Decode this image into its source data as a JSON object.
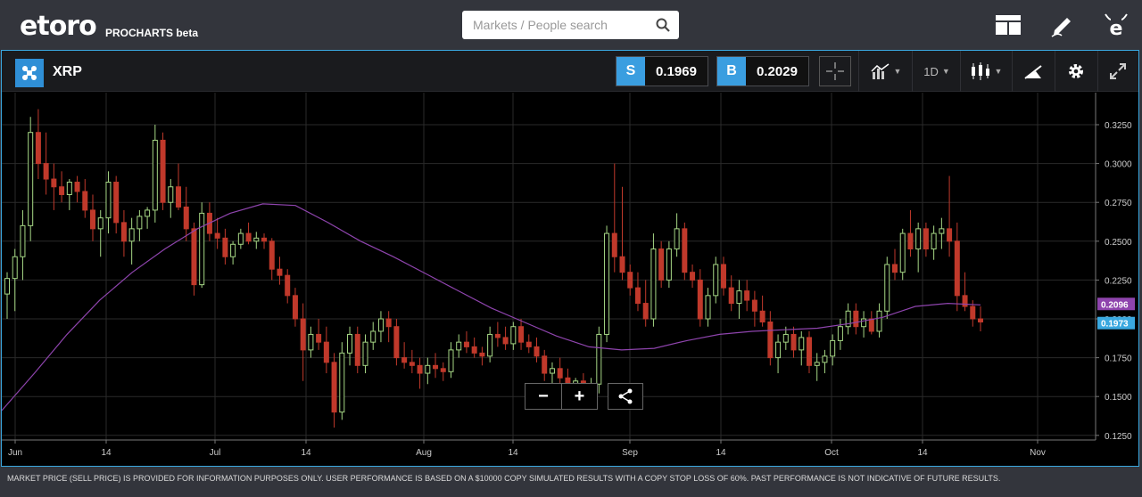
{
  "brand": {
    "logo": "etoro",
    "product": "PROCHARTS beta"
  },
  "search": {
    "placeholder": "Markets / People search"
  },
  "instrument": {
    "symbol": "XRP"
  },
  "prices": {
    "sell_tag": "S",
    "sell": "0.1969",
    "buy_tag": "B",
    "buy": "0.2029"
  },
  "toolbar": {
    "timeframe": "1D"
  },
  "colors": {
    "accent": "#3aa8e0",
    "bear": "#c0392b",
    "bull": "#a6d785",
    "ma": "#8e44ad",
    "current_label": "#3aa8e0",
    "ma_label": "#8e44ad"
  },
  "chart_data": {
    "type": "candlestick",
    "y_ticks": [
      "0.3250",
      "0.3000",
      "0.2750",
      "0.2500",
      "0.2250",
      "0.2000",
      "0.1750",
      "0.1500",
      "0.1250"
    ],
    "ylim": [
      0.12,
      0.34
    ],
    "x_ticks": [
      "Jun",
      "14",
      "Jul",
      "14",
      "Aug",
      "14",
      "Sep",
      "14",
      "Oct",
      "14",
      "Nov"
    ],
    "ma_label": "0.2096",
    "last_label": "0.1973",
    "grid": true,
    "ohlc": [
      [
        0.216,
        0.23,
        0.2,
        0.226
      ],
      [
        0.226,
        0.245,
        0.205,
        0.24
      ],
      [
        0.24,
        0.27,
        0.225,
        0.26
      ],
      [
        0.26,
        0.33,
        0.25,
        0.32
      ],
      [
        0.32,
        0.335,
        0.29,
        0.3
      ],
      [
        0.3,
        0.32,
        0.28,
        0.29
      ],
      [
        0.29,
        0.3,
        0.27,
        0.285
      ],
      [
        0.285,
        0.295,
        0.275,
        0.28
      ],
      [
        0.28,
        0.29,
        0.27,
        0.288
      ],
      [
        0.288,
        0.292,
        0.275,
        0.282
      ],
      [
        0.282,
        0.29,
        0.265,
        0.27
      ],
      [
        0.27,
        0.28,
        0.25,
        0.258
      ],
      [
        0.258,
        0.27,
        0.24,
        0.265
      ],
      [
        0.265,
        0.295,
        0.255,
        0.288
      ],
      [
        0.288,
        0.292,
        0.255,
        0.262
      ],
      [
        0.262,
        0.27,
        0.24,
        0.25
      ],
      [
        0.25,
        0.265,
        0.235,
        0.258
      ],
      [
        0.258,
        0.27,
        0.25,
        0.266
      ],
      [
        0.266,
        0.272,
        0.258,
        0.27
      ],
      [
        0.27,
        0.325,
        0.262,
        0.315
      ],
      [
        0.315,
        0.32,
        0.27,
        0.275
      ],
      [
        0.275,
        0.29,
        0.265,
        0.285
      ],
      [
        0.285,
        0.3,
        0.27,
        0.272
      ],
      [
        0.272,
        0.285,
        0.25,
        0.258
      ],
      [
        0.258,
        0.262,
        0.215,
        0.222
      ],
      [
        0.222,
        0.275,
        0.22,
        0.268
      ],
      [
        0.268,
        0.275,
        0.25,
        0.255
      ],
      [
        0.255,
        0.265,
        0.245,
        0.252
      ],
      [
        0.252,
        0.258,
        0.235,
        0.24
      ],
      [
        0.24,
        0.25,
        0.235,
        0.248
      ],
      [
        0.248,
        0.258,
        0.245,
        0.255
      ],
      [
        0.255,
        0.262,
        0.248,
        0.25
      ],
      [
        0.25,
        0.256,
        0.245,
        0.252
      ],
      [
        0.252,
        0.255,
        0.245,
        0.25
      ],
      [
        0.25,
        0.252,
        0.225,
        0.232
      ],
      [
        0.232,
        0.24,
        0.222,
        0.228
      ],
      [
        0.228,
        0.232,
        0.21,
        0.215
      ],
      [
        0.215,
        0.22,
        0.195,
        0.2
      ],
      [
        0.2,
        0.21,
        0.16,
        0.18
      ],
      [
        0.18,
        0.195,
        0.175,
        0.19
      ],
      [
        0.19,
        0.2,
        0.18,
        0.185
      ],
      [
        0.185,
        0.195,
        0.165,
        0.172
      ],
      [
        0.172,
        0.178,
        0.13,
        0.14
      ],
      [
        0.14,
        0.185,
        0.135,
        0.178
      ],
      [
        0.178,
        0.195,
        0.17,
        0.19
      ],
      [
        0.19,
        0.195,
        0.165,
        0.17
      ],
      [
        0.17,
        0.19,
        0.165,
        0.185
      ],
      [
        0.185,
        0.198,
        0.18,
        0.192
      ],
      [
        0.192,
        0.205,
        0.185,
        0.2
      ],
      [
        0.2,
        0.205,
        0.185,
        0.195
      ],
      [
        0.195,
        0.2,
        0.17,
        0.175
      ],
      [
        0.175,
        0.185,
        0.168,
        0.172
      ],
      [
        0.172,
        0.18,
        0.165,
        0.17
      ],
      [
        0.17,
        0.175,
        0.155,
        0.165
      ],
      [
        0.165,
        0.175,
        0.158,
        0.17
      ],
      [
        0.17,
        0.178,
        0.162,
        0.168
      ],
      [
        0.168,
        0.172,
        0.16,
        0.166
      ],
      [
        0.166,
        0.185,
        0.162,
        0.18
      ],
      [
        0.18,
        0.19,
        0.175,
        0.185
      ],
      [
        0.185,
        0.192,
        0.178,
        0.182
      ],
      [
        0.182,
        0.188,
        0.175,
        0.178
      ],
      [
        0.178,
        0.182,
        0.17,
        0.176
      ],
      [
        0.176,
        0.195,
        0.172,
        0.19
      ],
      [
        0.19,
        0.198,
        0.182,
        0.188
      ],
      [
        0.188,
        0.195,
        0.18,
        0.184
      ],
      [
        0.184,
        0.198,
        0.18,
        0.195
      ],
      [
        0.195,
        0.2,
        0.18,
        0.185
      ],
      [
        0.185,
        0.19,
        0.178,
        0.182
      ],
      [
        0.182,
        0.188,
        0.172,
        0.176
      ],
      [
        0.176,
        0.18,
        0.16,
        0.165
      ],
      [
        0.165,
        0.172,
        0.155,
        0.168
      ],
      [
        0.168,
        0.175,
        0.158,
        0.162
      ],
      [
        0.162,
        0.168,
        0.15,
        0.155
      ],
      [
        0.155,
        0.162,
        0.15,
        0.16
      ],
      [
        0.16,
        0.165,
        0.152,
        0.156
      ],
      [
        0.156,
        0.162,
        0.15,
        0.158
      ],
      [
        0.158,
        0.195,
        0.152,
        0.19
      ],
      [
        0.19,
        0.26,
        0.185,
        0.255
      ],
      [
        0.255,
        0.3,
        0.23,
        0.24
      ],
      [
        0.24,
        0.285,
        0.225,
        0.23
      ],
      [
        0.23,
        0.235,
        0.215,
        0.22
      ],
      [
        0.22,
        0.23,
        0.205,
        0.21
      ],
      [
        0.21,
        0.225,
        0.195,
        0.2
      ],
      [
        0.2,
        0.255,
        0.195,
        0.245
      ],
      [
        0.245,
        0.25,
        0.22,
        0.225
      ],
      [
        0.225,
        0.25,
        0.22,
        0.245
      ],
      [
        0.245,
        0.268,
        0.24,
        0.258
      ],
      [
        0.258,
        0.262,
        0.225,
        0.23
      ],
      [
        0.23,
        0.235,
        0.22,
        0.225
      ],
      [
        0.225,
        0.232,
        0.195,
        0.2
      ],
      [
        0.2,
        0.22,
        0.195,
        0.215
      ],
      [
        0.215,
        0.24,
        0.21,
        0.235
      ],
      [
        0.235,
        0.24,
        0.215,
        0.22
      ],
      [
        0.22,
        0.228,
        0.205,
        0.21
      ],
      [
        0.21,
        0.225,
        0.2,
        0.218
      ],
      [
        0.218,
        0.225,
        0.205,
        0.212
      ],
      [
        0.212,
        0.218,
        0.195,
        0.205
      ],
      [
        0.205,
        0.215,
        0.195,
        0.198
      ],
      [
        0.198,
        0.205,
        0.17,
        0.175
      ],
      [
        0.175,
        0.19,
        0.165,
        0.185
      ],
      [
        0.185,
        0.195,
        0.18,
        0.19
      ],
      [
        0.19,
        0.195,
        0.175,
        0.18
      ],
      [
        0.18,
        0.192,
        0.17,
        0.188
      ],
      [
        0.188,
        0.192,
        0.165,
        0.17
      ],
      [
        0.17,
        0.178,
        0.16,
        0.172
      ],
      [
        0.172,
        0.18,
        0.165,
        0.176
      ],
      [
        0.176,
        0.19,
        0.17,
        0.186
      ],
      [
        0.186,
        0.2,
        0.18,
        0.195
      ],
      [
        0.195,
        0.21,
        0.19,
        0.205
      ],
      [
        0.205,
        0.21,
        0.19,
        0.195
      ],
      [
        0.195,
        0.205,
        0.188,
        0.2
      ],
      [
        0.2,
        0.205,
        0.19,
        0.192
      ],
      [
        0.192,
        0.21,
        0.188,
        0.205
      ],
      [
        0.205,
        0.24,
        0.2,
        0.235
      ],
      [
        0.235,
        0.245,
        0.225,
        0.23
      ],
      [
        0.23,
        0.258,
        0.225,
        0.255
      ],
      [
        0.255,
        0.27,
        0.24,
        0.245
      ],
      [
        0.245,
        0.262,
        0.23,
        0.258
      ],
      [
        0.258,
        0.262,
        0.24,
        0.245
      ],
      [
        0.245,
        0.26,
        0.238,
        0.255
      ],
      [
        0.255,
        0.265,
        0.245,
        0.258
      ],
      [
        0.258,
        0.292,
        0.24,
        0.25
      ],
      [
        0.25,
        0.262,
        0.205,
        0.215
      ],
      [
        0.215,
        0.23,
        0.205,
        0.208
      ],
      [
        0.208,
        0.212,
        0.195,
        0.2
      ],
      [
        0.2,
        0.208,
        0.192,
        0.198
      ]
    ],
    "ma": [
      0.141,
      0.165,
      0.19,
      0.212,
      0.23,
      0.245,
      0.258,
      0.268,
      0.274,
      0.273,
      0.262,
      0.25,
      0.24,
      0.229,
      0.218,
      0.207,
      0.198,
      0.189,
      0.182,
      0.18,
      0.181,
      0.186,
      0.19,
      0.192,
      0.193,
      0.194,
      0.197,
      0.201,
      0.208,
      0.21,
      0.209
    ]
  },
  "disclaimer": "MARKET PRICE (SELL PRICE) IS PROVIDED FOR INFORMATION PURPOSES ONLY. USER PERFORMANCE IS BASED ON A $10000 COPY SIMULATED RESULTS WITH A COPY STOP LOSS OF 60%. PAST PERFORMANCE IS NOT INDICATIVE OF FUTURE RESULTS."
}
